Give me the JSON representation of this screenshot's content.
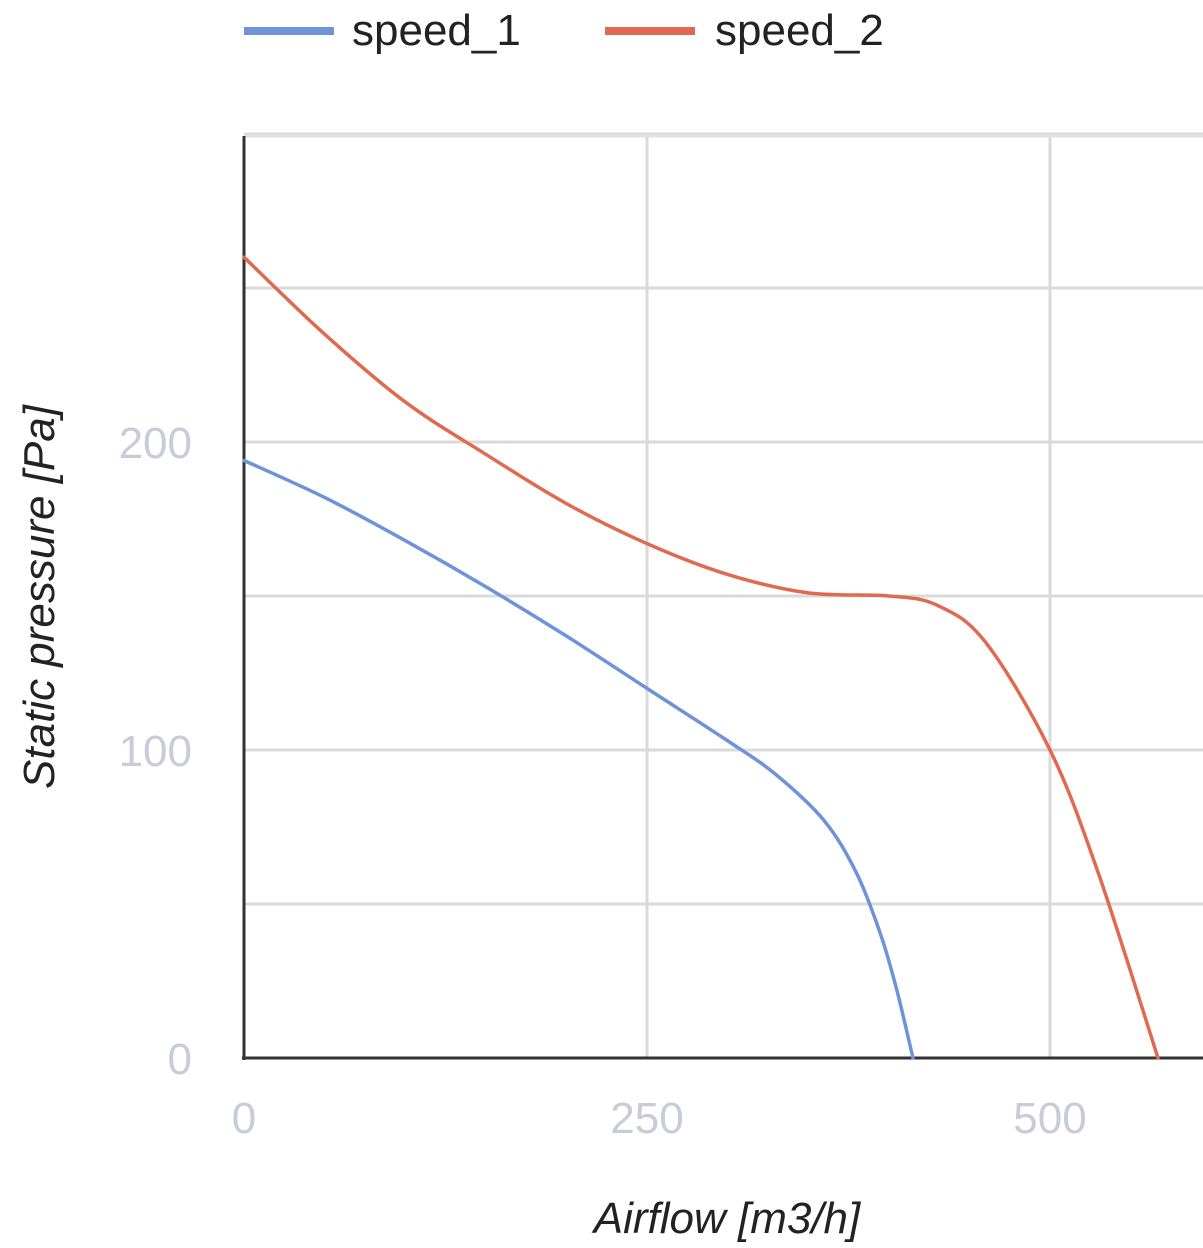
{
  "chart_data": {
    "type": "line",
    "title": "",
    "xlabel": "Airflow [m3/h]",
    "ylabel": "Static pressure [Pa]",
    "xlim": [
      0,
      600
    ],
    "ylim": [
      0,
      300
    ],
    "x_ticks": [
      {
        "value": 0,
        "label": "0"
      },
      {
        "value": 250,
        "label": "250"
      },
      {
        "value": 500,
        "label": "500"
      }
    ],
    "y_ticks": [
      {
        "value": 0,
        "label": "0"
      },
      {
        "value": 100,
        "label": "100"
      },
      {
        "value": 200,
        "label": "200"
      }
    ],
    "grid_x": [
      250,
      500
    ],
    "grid_y": [
      50,
      100,
      150,
      200,
      250,
      300
    ],
    "grid": true,
    "legend_position": "top",
    "series": [
      {
        "name": "speed_1",
        "color": "#6f93d8",
        "x": [
          0,
          50,
          100,
          150,
          200,
          250,
          300,
          330,
          360,
          380,
          395,
          405,
          415
        ],
        "y": [
          194,
          182,
          168,
          153,
          137,
          120,
          103,
          92,
          77,
          60,
          40,
          22,
          0
        ]
      },
      {
        "name": "speed_2",
        "color": "#e06a50",
        "x": [
          0,
          50,
          100,
          150,
          200,
          250,
          300,
          350,
          400,
          430,
          460,
          500,
          530,
          567
        ],
        "y": [
          260,
          235,
          213,
          196,
          180,
          167,
          157,
          151,
          150,
          147,
          135,
          100,
          60,
          0
        ]
      }
    ]
  }
}
